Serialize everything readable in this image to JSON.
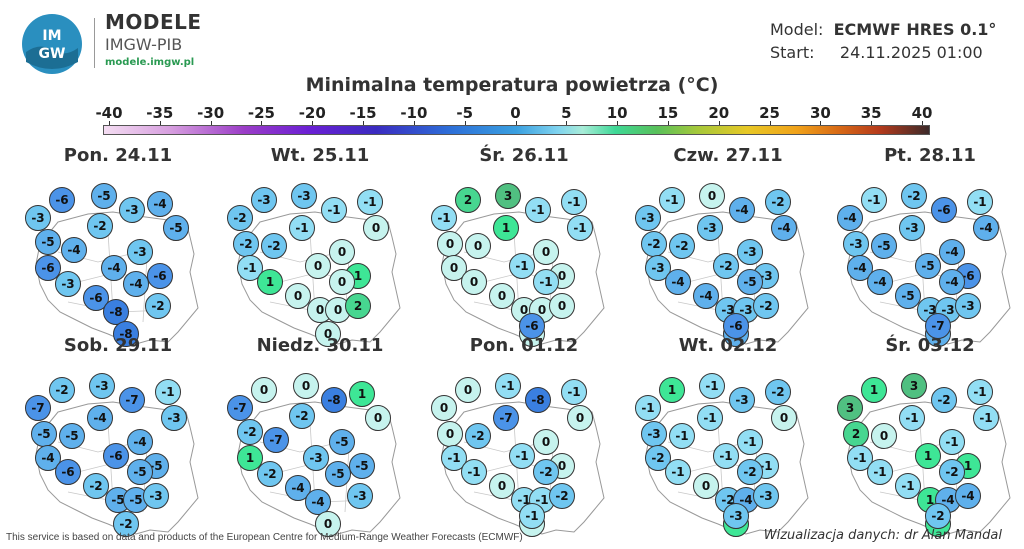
{
  "header": {
    "logo_text": "IMGW",
    "brand_title": "MODELE",
    "brand_subtitle": "IMGW-PIB",
    "brand_url": "modele.imgw.pl",
    "model_label": "Model:",
    "model_value": "ECMWF HRES 0.1°",
    "start_label": "Start:",
    "start_value": "24.11.2025 01:00"
  },
  "map_title": "Minimalna temperatura powietrza (°C)",
  "colorbar": {
    "ticks": [
      "-40",
      "-35",
      "-30",
      "-25",
      "-20",
      "-15",
      "-10",
      "-5",
      "0",
      "5",
      "10",
      "15",
      "20",
      "25",
      "30",
      "35",
      "40"
    ]
  },
  "panels": [
    {
      "title": "Pon. 24.11",
      "values": [
        -6,
        -5,
        -3,
        -4,
        -3,
        -2,
        -5,
        -5,
        -4,
        -3,
        -6,
        -4,
        -6,
        -3,
        -4,
        -6,
        -8,
        -2,
        -8
      ]
    },
    {
      "title": "Wt. 25.11",
      "values": [
        -3,
        -3,
        -1,
        -1,
        -2,
        -1,
        0,
        -2,
        -2,
        0,
        -1,
        0,
        1,
        1,
        0,
        0,
        0,
        0,
        2,
        0
      ]
    },
    {
      "title": "Śr. 26.11",
      "values": [
        2,
        3,
        -1,
        -1,
        -1,
        1,
        -1,
        0,
        0,
        0,
        0,
        -1,
        0,
        0,
        -1,
        0,
        0,
        0,
        0,
        0,
        -6
      ]
    },
    {
      "title": "Czw. 27.11",
      "values": [
        -1,
        0,
        -4,
        -2,
        -3,
        -3,
        -4,
        -2,
        -2,
        -3,
        -3,
        -2,
        -3,
        -4,
        -5,
        -4,
        -3,
        -3,
        -2,
        -4,
        -6
      ]
    },
    {
      "title": "Pt. 28.11",
      "values": [
        -1,
        -2,
        -6,
        -1,
        -4,
        -3,
        -4,
        -3,
        -5,
        -4,
        -4,
        -5,
        -6,
        -4,
        -4,
        -5,
        -3,
        -3,
        -3,
        -4,
        -7
      ]
    },
    {
      "title": "Sob. 29.11",
      "values": [
        -2,
        -3,
        -7,
        -1,
        -7,
        -4,
        -3,
        -5,
        -5,
        -4,
        -4,
        -6,
        -5,
        -6,
        -5,
        -2,
        -5,
        -5,
        -3,
        -2
      ]
    },
    {
      "title": "Niedz. 30.11",
      "values": [
        0,
        0,
        -8,
        1,
        -7,
        -2,
        0,
        -2,
        -7,
        -5,
        1,
        -3,
        -5,
        -2,
        -5,
        -4,
        -4,
        -3,
        0
      ]
    },
    {
      "title": "Pon. 01.12",
      "values": [
        0,
        -1,
        -8,
        -1,
        0,
        -7,
        0,
        0,
        -2,
        0,
        -1,
        -1,
        0,
        -1,
        -2,
        0,
        -1,
        -1,
        -2,
        0,
        -1
      ]
    },
    {
      "title": "Wt. 02.12",
      "values": [
        1,
        -1,
        -3,
        -2,
        -1,
        -1,
        0,
        -3,
        -1,
        -1,
        -2,
        -1,
        -1,
        -1,
        -2,
        0,
        -2,
        -4,
        -3,
        1,
        -3
      ]
    },
    {
      "title": "Śr. 03.12",
      "values": [
        1,
        3,
        -2,
        -1,
        3,
        -1,
        -1,
        2,
        0,
        -1,
        -1,
        1,
        1,
        -1,
        -2,
        -1,
        1,
        -4,
        -4,
        1,
        -2
      ]
    }
  ],
  "footer": {
    "source_note": "This service is based on data and products of the European Centre for Medium-Range Weather Forecasts (ECMWF)",
    "credit": "Wizualizacja danych: dr Alan Mandal"
  },
  "colors": {
    "scale_stops": [
      {
        "t": -10,
        "c": "#2a6fd6"
      },
      {
        "t": -8,
        "c": "#3a7fe0"
      },
      {
        "t": -6,
        "c": "#4b93e8"
      },
      {
        "t": -4,
        "c": "#5fb0ec"
      },
      {
        "t": -2,
        "c": "#6fc6f0"
      },
      {
        "t": -1,
        "c": "#92def4"
      },
      {
        "t": 0,
        "c": "#c6f3ee"
      },
      {
        "t": 1,
        "c": "#3ee696"
      },
      {
        "t": 2,
        "c": "#47d690"
      },
      {
        "t": 3,
        "c": "#50c081"
      }
    ]
  }
}
